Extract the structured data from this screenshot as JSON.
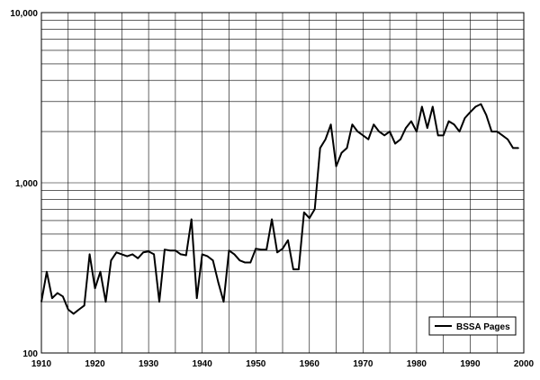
{
  "chart_data": {
    "type": "line",
    "title": "",
    "xlabel": "",
    "ylabel": "",
    "y_scale": "log",
    "xlim": [
      1910,
      2000
    ],
    "ylim": [
      100,
      10000
    ],
    "grid": true,
    "x_ticks": [
      1910,
      1920,
      1930,
      1940,
      1950,
      1960,
      1970,
      1980,
      1990,
      2000
    ],
    "x_tick_labels": [
      "1910",
      "1920",
      "1930",
      "1940",
      "1950",
      "1960",
      "1970",
      "1980",
      "1990",
      "2000"
    ],
    "y_ticks": [
      100,
      1000,
      10000
    ],
    "y_tick_labels": [
      "100",
      "1,000",
      "10,000"
    ],
    "legend": {
      "position": "bottom-right",
      "label": "BSSA Pages"
    },
    "series": [
      {
        "name": "BSSA Pages",
        "color": "#000000",
        "x": [
          1910,
          1911,
          1912,
          1913,
          1914,
          1915,
          1916,
          1917,
          1918,
          1919,
          1920,
          1921,
          1922,
          1923,
          1924,
          1925,
          1926,
          1927,
          1928,
          1929,
          1930,
          1931,
          1932,
          1933,
          1934,
          1935,
          1936,
          1937,
          1938,
          1939,
          1940,
          1941,
          1942,
          1943,
          1944,
          1945,
          1946,
          1947,
          1948,
          1949,
          1950,
          1951,
          1952,
          1953,
          1954,
          1955,
          1956,
          1957,
          1958,
          1959,
          1960,
          1961,
          1962,
          1963,
          1964,
          1965,
          1966,
          1967,
          1968,
          1969,
          1970,
          1971,
          1972,
          1973,
          1974,
          1975,
          1976,
          1977,
          1978,
          1979,
          1980,
          1981,
          1982,
          1983,
          1984,
          1985,
          1986,
          1987,
          1988,
          1989,
          1990,
          1991,
          1992,
          1993,
          1994,
          1995,
          1996,
          1997,
          1998,
          1999
        ],
        "y": [
          200,
          300,
          210,
          225,
          215,
          180,
          170,
          180,
          190,
          380,
          240,
          300,
          200,
          350,
          390,
          380,
          370,
          380,
          360,
          390,
          395,
          380,
          200,
          405,
          400,
          400,
          380,
          375,
          610,
          210,
          380,
          370,
          350,
          260,
          200,
          400,
          380,
          350,
          340,
          340,
          410,
          405,
          405,
          610,
          390,
          410,
          460,
          310,
          310,
          670,
          620,
          700,
          1600,
          1800,
          2200,
          1250,
          1500,
          1600,
          2200,
          2000,
          1900,
          1800,
          2200,
          2000,
          1900,
          2000,
          1700,
          1800,
          2100,
          2300,
          2000,
          2800,
          2100,
          2800,
          1900,
          1900,
          2300,
          2200,
          2000,
          2400,
          2600,
          2800,
          2900,
          2500,
          2000,
          2000,
          1900,
          1800,
          1600,
          1600
        ]
      }
    ]
  }
}
